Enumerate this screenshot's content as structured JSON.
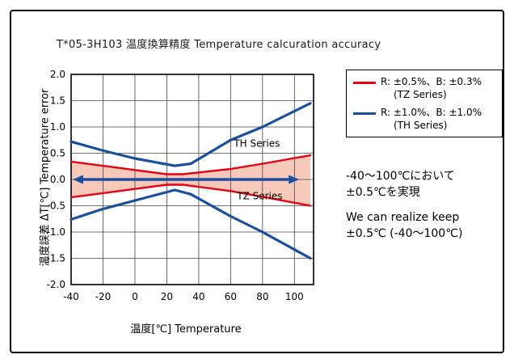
{
  "title": "T*05-3H103 温度換算精度  Temperature calcuration accuracy",
  "chart_data": {
    "type": "line",
    "title": "T*05-3H103 温度換算精度 Temperature calcuration accuracy",
    "xlabel": "温度[℃]  Temperature",
    "ylabel": "温度誤差 ΔT[℃]  Temperature error",
    "xlim": [
      -40,
      112
    ],
    "ylim": [
      -2.0,
      2.0
    ],
    "x_ticks": [
      -40,
      -20,
      0,
      20,
      40,
      60,
      80,
      100
    ],
    "y_ticks": [
      -2.0,
      -1.5,
      -1.0,
      -0.5,
      0.0,
      0.5,
      1.0,
      1.5,
      2.0
    ],
    "grid": true,
    "grid_color": "#444444",
    "band": {
      "name": "TZ Series tolerance band",
      "color": "#f6c9ba",
      "upper": [
        [
          -40,
          0.34
        ],
        [
          -20,
          0.26
        ],
        [
          0,
          0.18
        ],
        [
          20,
          0.1
        ],
        [
          30,
          0.1
        ],
        [
          60,
          0.2
        ],
        [
          80,
          0.3
        ],
        [
          110,
          0.46
        ]
      ],
      "lower": [
        [
          -40,
          -0.34
        ],
        [
          -20,
          -0.26
        ],
        [
          0,
          -0.18
        ],
        [
          20,
          -0.1
        ],
        [
          30,
          -0.1
        ],
        [
          60,
          -0.22
        ],
        [
          80,
          -0.33
        ],
        [
          110,
          -0.5
        ]
      ]
    },
    "series": [
      {
        "name": "TZ Series upper limit",
        "color": "#e60013",
        "width": 2.4,
        "points": [
          [
            -40,
            0.34
          ],
          [
            -20,
            0.26
          ],
          [
            0,
            0.18
          ],
          [
            20,
            0.1
          ],
          [
            30,
            0.1
          ],
          [
            60,
            0.2
          ],
          [
            80,
            0.3
          ],
          [
            110,
            0.46
          ]
        ]
      },
      {
        "name": "TZ Series lower limit",
        "color": "#e60013",
        "width": 2.4,
        "points": [
          [
            -40,
            -0.34
          ],
          [
            -20,
            -0.26
          ],
          [
            0,
            -0.18
          ],
          [
            20,
            -0.1
          ],
          [
            30,
            -0.1
          ],
          [
            60,
            -0.22
          ],
          [
            80,
            -0.33
          ],
          [
            110,
            -0.5
          ]
        ]
      },
      {
        "name": "TH Series upper limit",
        "color": "#1b4f9e",
        "width": 3.2,
        "points": [
          [
            -40,
            0.72
          ],
          [
            -20,
            0.55
          ],
          [
            0,
            0.4
          ],
          [
            25,
            0.26
          ],
          [
            35,
            0.3
          ],
          [
            60,
            0.75
          ],
          [
            80,
            1.0
          ],
          [
            110,
            1.45
          ]
        ]
      },
      {
        "name": "TH Series lower limit",
        "color": "#1b4f9e",
        "width": 3.2,
        "points": [
          [
            -40,
            -0.76
          ],
          [
            -20,
            -0.56
          ],
          [
            0,
            -0.4
          ],
          [
            25,
            -0.2
          ],
          [
            35,
            -0.28
          ],
          [
            60,
            -0.7
          ],
          [
            80,
            -1.0
          ],
          [
            110,
            -1.5
          ]
        ]
      }
    ],
    "annotations": [
      {
        "text": "TH Series",
        "x": 62,
        "y": 0.62,
        "color": "#000000"
      },
      {
        "text": "TZ Series",
        "x": 64,
        "y": -0.38,
        "color": "#000000"
      }
    ],
    "arrow": {
      "x1": -39,
      "x2": 103,
      "y": 0.0,
      "color": "#1b4f9e"
    },
    "legend_position": "outside-right"
  },
  "legend": {
    "items": [
      {
        "line_color": "#e60013",
        "label": "R: ±0.5%、B: ±0.3%",
        "sub": "(TZ Series)"
      },
      {
        "line_color": "#1b4f9e",
        "label": "R: ±1.0%、B: ±1.0%",
        "sub": "(TH Series)"
      }
    ]
  },
  "note": {
    "jp_line1": "-40～100℃において",
    "jp_line2": "±0.5℃を実現",
    "en_line1": "We can realize keep",
    "en_line2": "±0.5℃ (-40～100℃)"
  },
  "colors": {
    "tz_red": "#e60013",
    "th_blue": "#1b4f9e",
    "band_pink": "#f6c9ba",
    "frame_border": "#000000",
    "background": "#ffffff"
  }
}
